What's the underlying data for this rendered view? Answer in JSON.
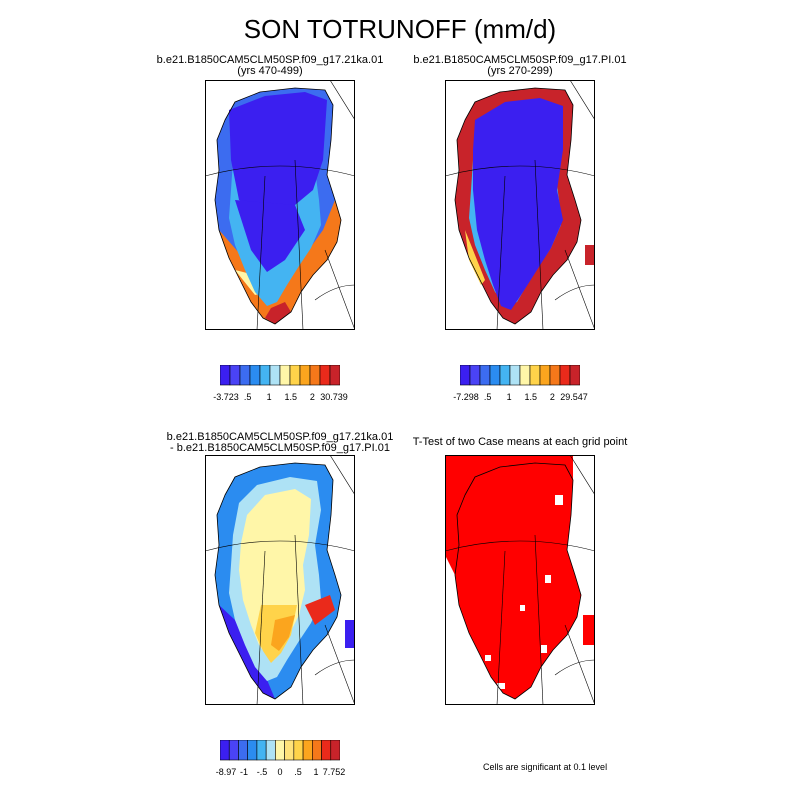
{
  "title": "SON TOTRUNOFF (mm/d)",
  "panels": [
    {
      "title_line1": "b.e21.B1850CAM5CLM50SP.f09_g17.21ka.01",
      "title_line2": "(yrs 470-499)",
      "colorbar": {
        "colors": [
          "#3b1ff0",
          "#4a43f5",
          "#3c6cf0",
          "#2b8cf0",
          "#44b4f2",
          "#aee2f5",
          "#fff6a8",
          "#ffd34a",
          "#fba51e",
          "#f5781a",
          "#ea2a1b",
          "#c8232a"
        ],
        "tick_labels": [
          "-3.723",
          ".5",
          "1",
          "1.5",
          "2",
          "30.739"
        ]
      }
    },
    {
      "title_line1": "b.e21.B1850CAM5CLM50SP.f09_g17.PI.01",
      "title_line2": "(yrs 270-299)",
      "colorbar": {
        "colors": [
          "#3b1ff0",
          "#4a43f5",
          "#3c6cf0",
          "#2b8cf0",
          "#44b4f2",
          "#aee2f5",
          "#fff6a8",
          "#ffd34a",
          "#fba51e",
          "#f5781a",
          "#ea2a1b",
          "#c8232a"
        ],
        "tick_labels": [
          "-7.298",
          ".5",
          "1",
          "1.5",
          "2",
          "29.547"
        ]
      }
    },
    {
      "title_line1": "b.e21.B1850CAM5CLM50SP.f09_g17.21ka.01",
      "title_line2": "- b.e21.B1850CAM5CLM50SP.f09_g17.PI.01",
      "colorbar": {
        "colors": [
          "#3b1ff0",
          "#4a43f5",
          "#3c6cf0",
          "#2b8cf0",
          "#44b4f2",
          "#aee2f5",
          "#fff6a8",
          "#ffe27a",
          "#ffd34a",
          "#fba51e",
          "#f5781a",
          "#ea2a1b",
          "#c8232a"
        ],
        "tick_labels": [
          "-8.97",
          "-1",
          "-.5",
          "0",
          ".5",
          "1",
          "7.752"
        ]
      }
    },
    {
      "title_line1": "T-Test of two Case means at each grid point",
      "title_line2": "",
      "note": "Cells are significant at 0.1 level"
    }
  ]
}
